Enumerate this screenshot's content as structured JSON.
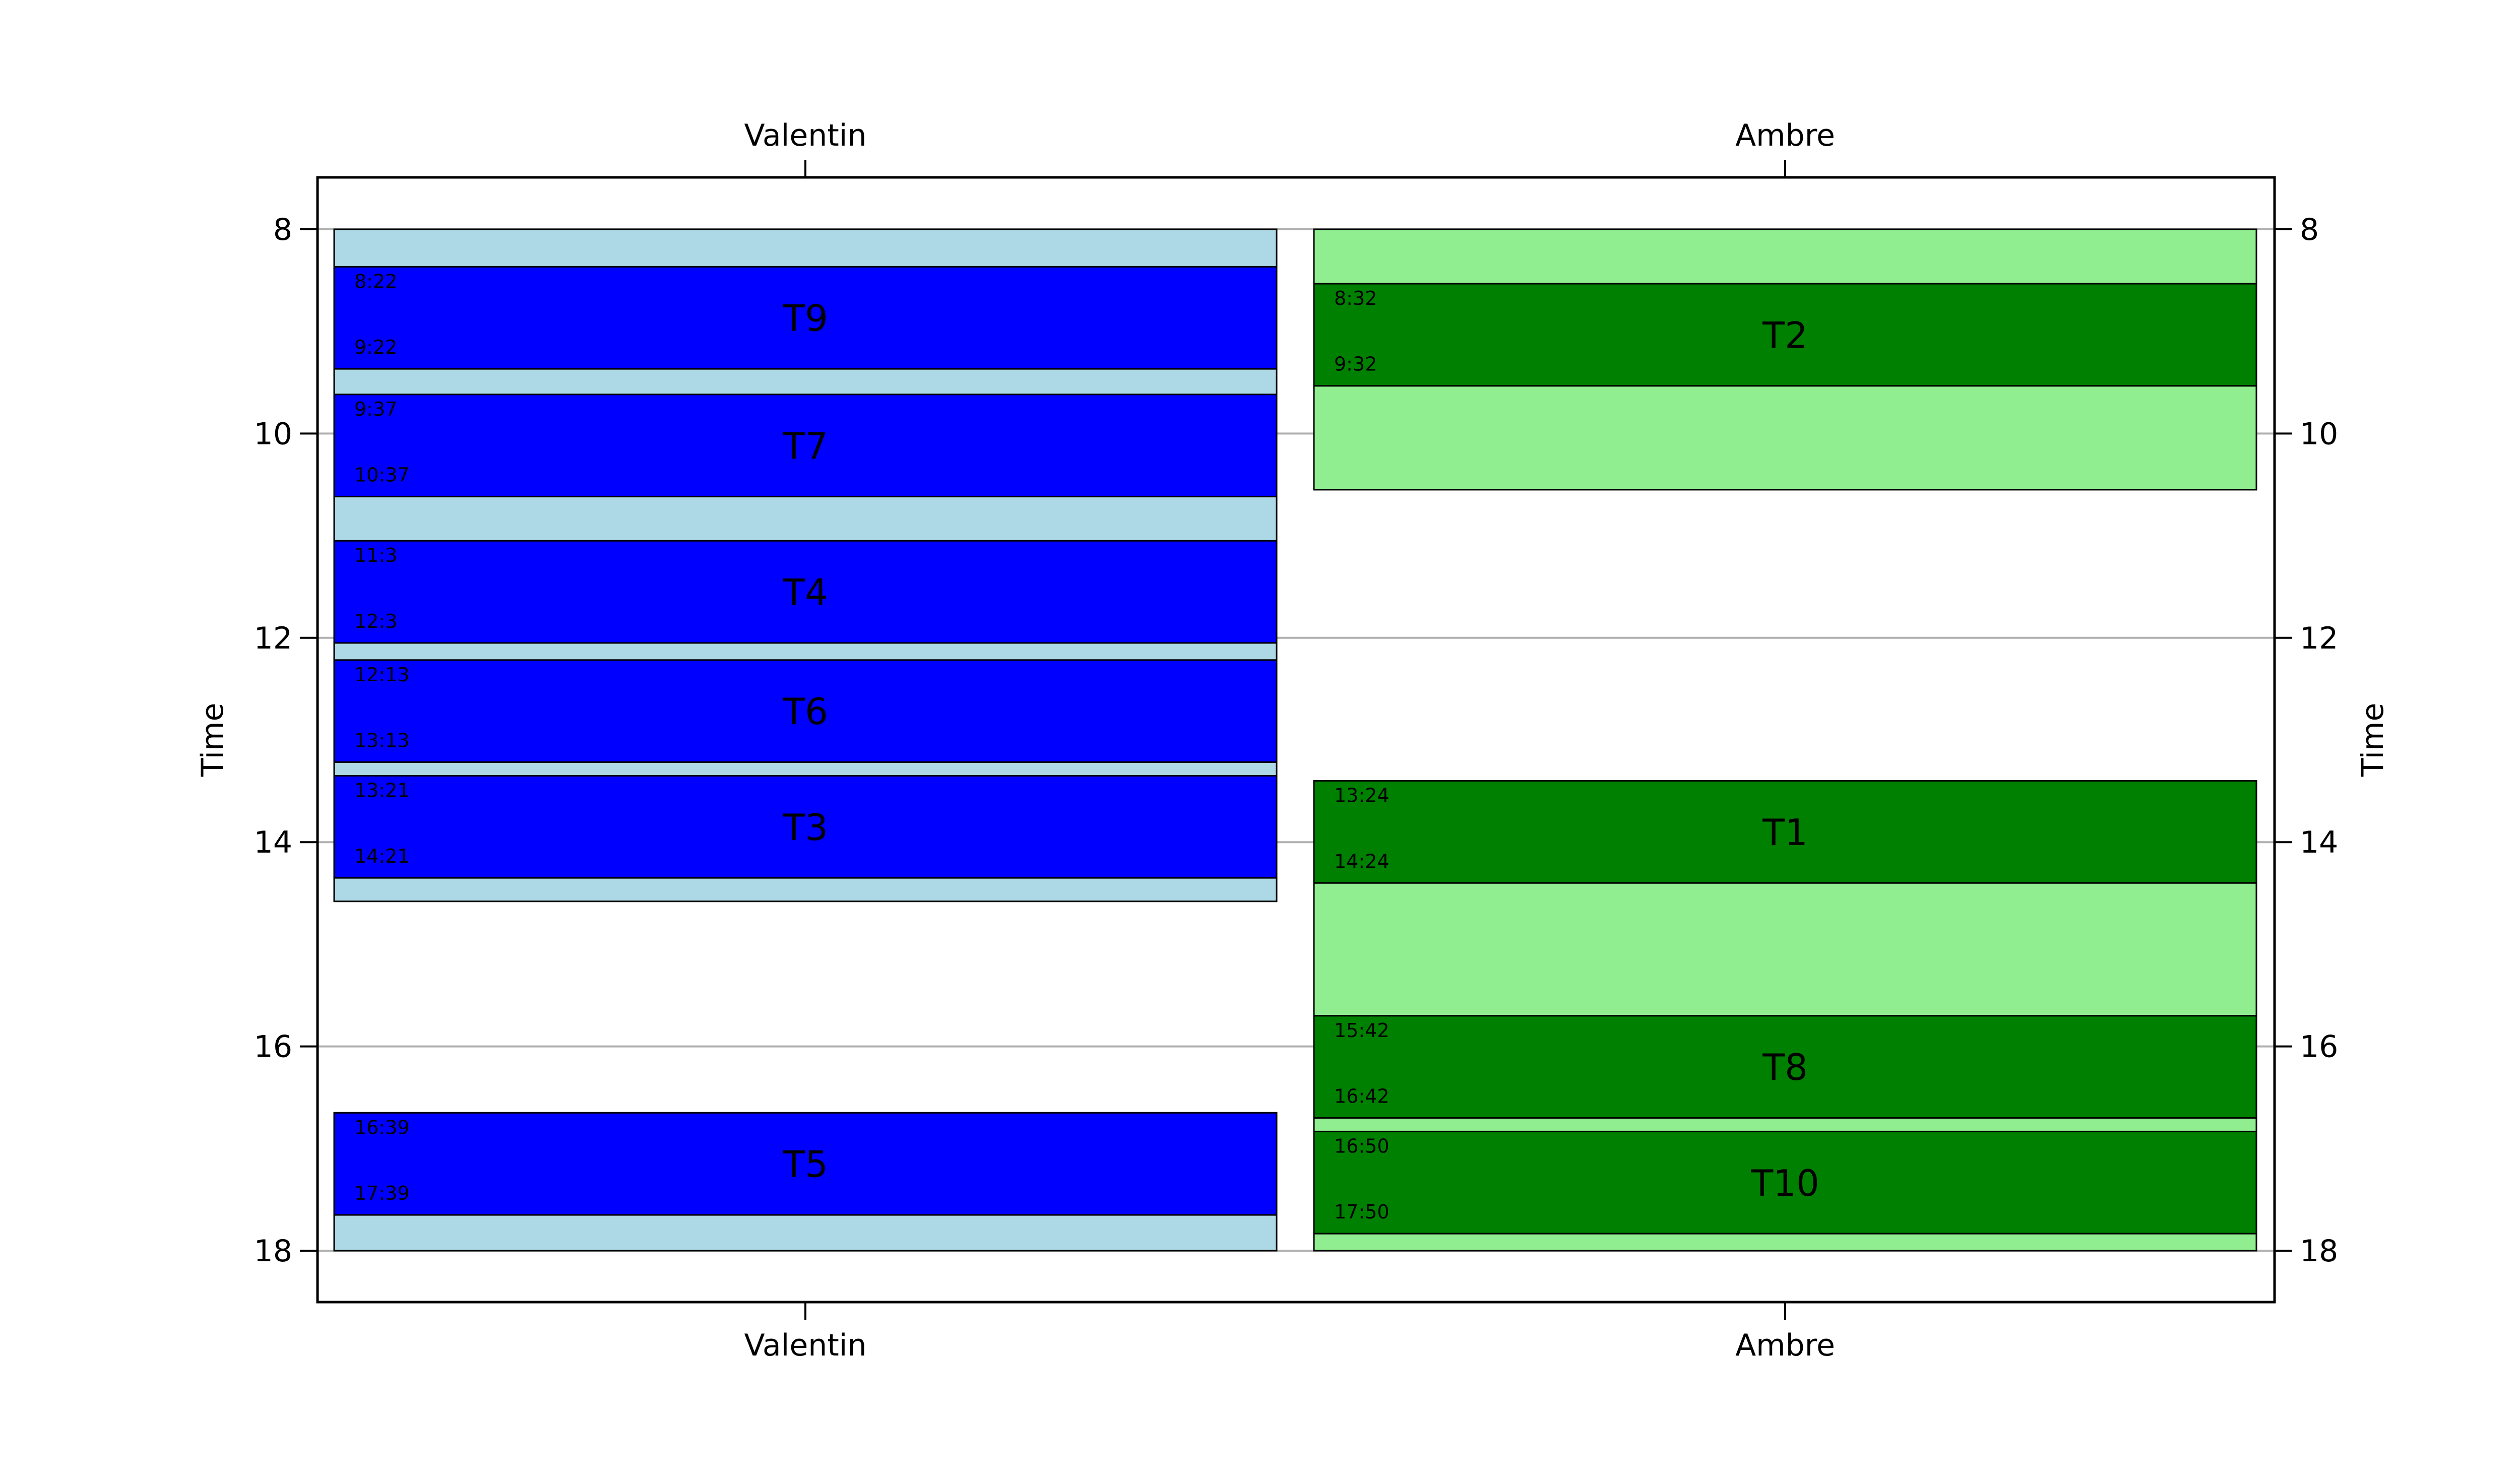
{
  "chart_data": {
    "type": "gantt",
    "ylabel": "Time",
    "ylim": [
      8,
      18
    ],
    "yticks": [
      8,
      10,
      12,
      14,
      16,
      18
    ],
    "y_inverted": true,
    "grid": "horizontal",
    "categories": [
      "Valentin",
      "Ambre"
    ],
    "colors": {
      "Valentin": {
        "block": "#add8e6",
        "task": "#0000ff"
      },
      "Ambre": {
        "block": "#90ee90",
        "task": "#008000"
      }
    },
    "availability": [
      {
        "person": "Valentin",
        "start": 8.0,
        "end": 14.58
      },
      {
        "person": "Valentin",
        "start": 16.65,
        "end": 18.0
      },
      {
        "person": "Ambre",
        "start": 8.0,
        "end": 10.55
      },
      {
        "person": "Ambre",
        "start": 13.4,
        "end": 18.0
      }
    ],
    "tasks": [
      {
        "person": "Valentin",
        "name": "T9",
        "start_label": "8:22",
        "end_label": "9:22",
        "start": 8.367,
        "end": 9.367
      },
      {
        "person": "Valentin",
        "name": "T7",
        "start_label": "9:37",
        "end_label": "10:37",
        "start": 9.617,
        "end": 10.617
      },
      {
        "person": "Valentin",
        "name": "T4",
        "start_label": "11:3",
        "end_label": "12:3",
        "start": 11.05,
        "end": 12.05
      },
      {
        "person": "Valentin",
        "name": "T6",
        "start_label": "12:13",
        "end_label": "13:13",
        "start": 12.217,
        "end": 13.217
      },
      {
        "person": "Valentin",
        "name": "T3",
        "start_label": "13:21",
        "end_label": "14:21",
        "start": 13.35,
        "end": 14.35
      },
      {
        "person": "Valentin",
        "name": "T5",
        "start_label": "16:39",
        "end_label": "17:39",
        "start": 16.65,
        "end": 17.65
      },
      {
        "person": "Ambre",
        "name": "T2",
        "start_label": "8:32",
        "end_label": "9:32",
        "start": 8.533,
        "end": 9.533
      },
      {
        "person": "Ambre",
        "name": "T1",
        "start_label": "13:24",
        "end_label": "14:24",
        "start": 13.4,
        "end": 14.4
      },
      {
        "person": "Ambre",
        "name": "T8",
        "start_label": "15:42",
        "end_label": "16:42",
        "start": 15.7,
        "end": 16.7
      },
      {
        "person": "Ambre",
        "name": "T10",
        "start_label": "16:50",
        "end_label": "17:50",
        "start": 16.833,
        "end": 17.833
      }
    ]
  }
}
